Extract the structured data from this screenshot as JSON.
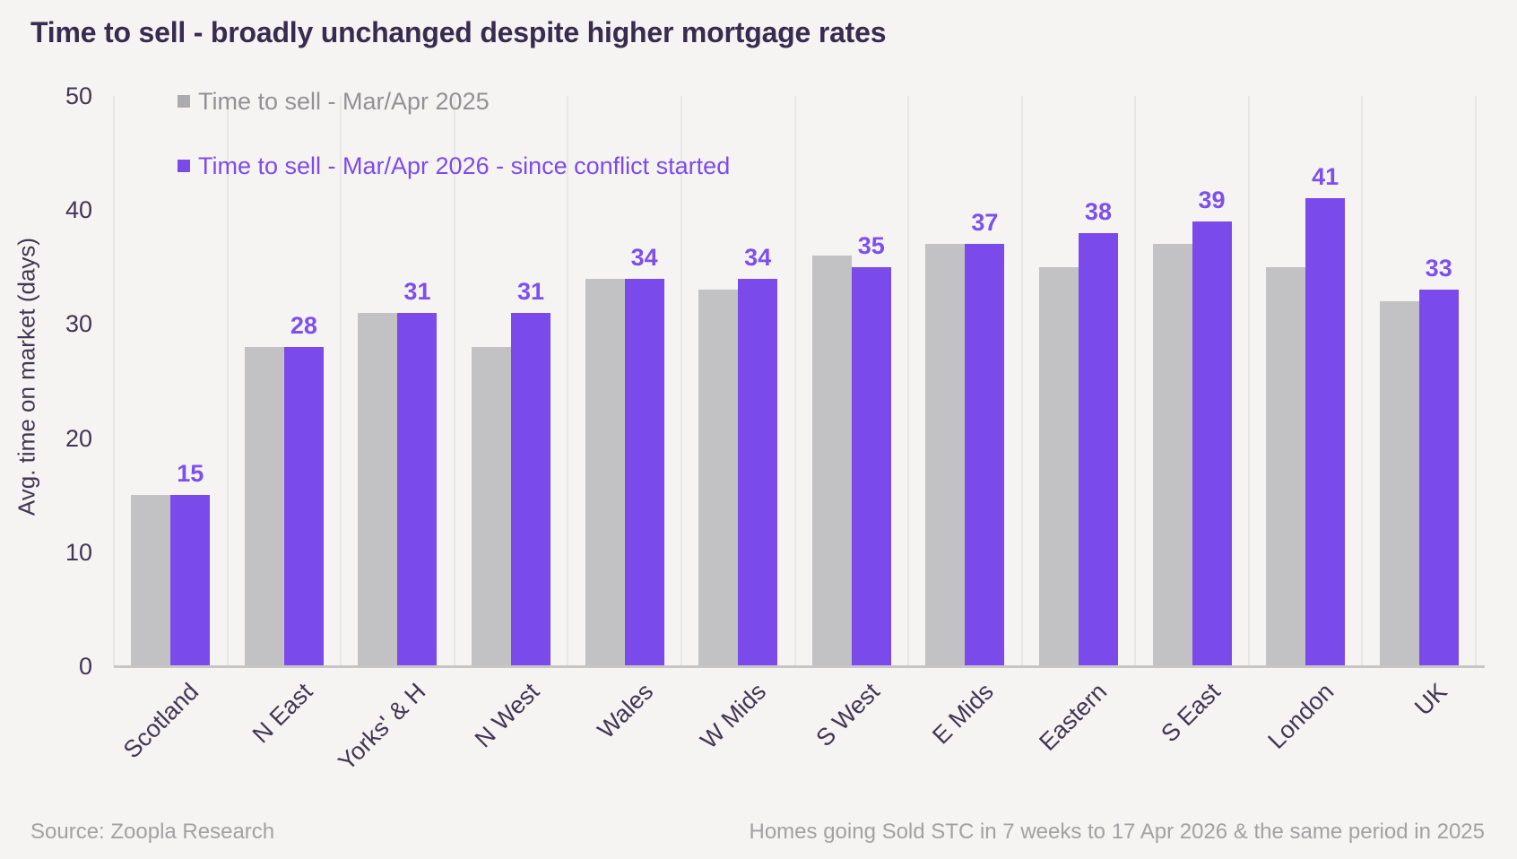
{
  "title": "Time to sell - broadly unchanged despite higher mortgage rates",
  "legend": [
    {
      "label": "Time to sell - Mar/Apr 2025",
      "swatch_color": "#ABAAAC",
      "text_color": "#929196"
    },
    {
      "label": "Time to sell - Mar/Apr 2026 - since conflict started",
      "swatch_color": "#7B4AEB",
      "text_color": "#7D4BEC"
    }
  ],
  "y_axis": {
    "label": "Avg. time on market (days)",
    "ticks": [
      0,
      10,
      20,
      30,
      40,
      50
    ],
    "min": 0,
    "max": 50
  },
  "chart_data": {
    "type": "bar",
    "title": "Time to sell - broadly unchanged despite higher mortgage rates",
    "xlabel": "",
    "ylabel": "Avg. time on market (days)",
    "ylim": [
      0,
      50
    ],
    "grid": "vertical-category-separators",
    "legend_position": "top-left-inside",
    "categories": [
      "Scotland",
      "N East",
      "Yorks' & H",
      "N West",
      "Wales",
      "W Mids",
      "S West",
      "E Mids",
      "Eastern",
      "S East",
      "London",
      "UK"
    ],
    "series": [
      {
        "name": "Time to sell - Mar/Apr 2025",
        "color": "#C2C1C3",
        "values": [
          15,
          28,
          31,
          28,
          34,
          33,
          36,
          37,
          35,
          37,
          35,
          32
        ],
        "data_labels_shown": false
      },
      {
        "name": "Time to sell - Mar/Apr 2026 - since conflict started",
        "color": "#7B4AEB",
        "values": [
          15,
          28,
          31,
          31,
          34,
          34,
          35,
          37,
          38,
          39,
          41,
          33
        ],
        "data_labels_shown": true,
        "data_label_color": "#7D4FEC"
      }
    ]
  },
  "footer": {
    "source": "Source: Zoopla Research",
    "note": "Homes going Sold STC in 7 weeks to 17 Apr 2026 & the same period in 2025"
  },
  "colors": {
    "background": "#F5F4F2",
    "title_text": "#372C50",
    "axis_text": "#413654",
    "gridline": "#E9E7E4",
    "baseline": "#C7C6C4",
    "bar_2025": "#C2C1C3",
    "bar_2026": "#7B4AEB",
    "value_label": "#7D4FEC",
    "footer_text": "#A2A1A3"
  }
}
